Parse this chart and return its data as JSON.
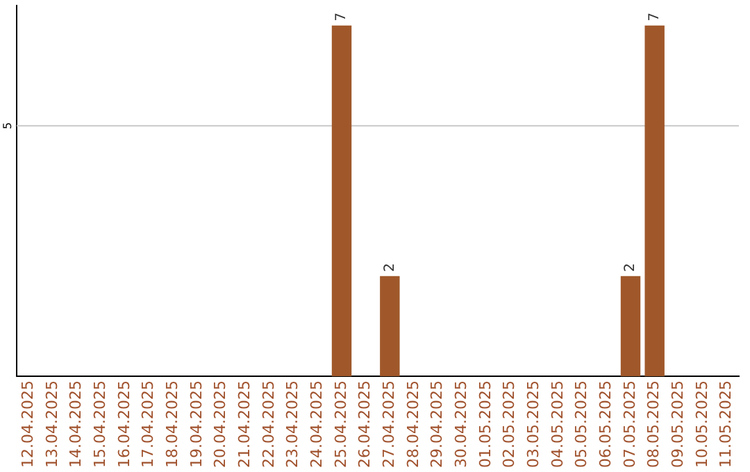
{
  "chart_data": {
    "type": "bar",
    "categories": [
      "12.04.2025",
      "13.04.2025",
      "14.04.2025",
      "15.04.2025",
      "16.04.2025",
      "17.04.2025",
      "18.04.2025",
      "19.04.2025",
      "20.04.2025",
      "21.04.2025",
      "22.04.2025",
      "23.04.2025",
      "24.04.2025",
      "25.04.2025",
      "26.04.2025",
      "27.04.2025",
      "28.04.2025",
      "29.04.2025",
      "30.04.2025",
      "01.05.2025",
      "02.05.2025",
      "03.05.2025",
      "04.05.2025",
      "05.05.2025",
      "06.05.2025",
      "07.05.2025",
      "08.05.2025",
      "09.05.2025",
      "10.05.2025",
      "11.05.2025"
    ],
    "values": [
      null,
      null,
      null,
      null,
      null,
      null,
      null,
      null,
      null,
      null,
      null,
      null,
      null,
      7,
      null,
      2,
      null,
      null,
      null,
      null,
      null,
      null,
      null,
      null,
      null,
      2,
      7,
      null,
      null,
      null
    ],
    "data_labels": true,
    "color": "#a0582a",
    "ylim": [
      0,
      7.4
    ],
    "ref_lines": [
      {
        "axis": "y",
        "value": 5,
        "label": "5",
        "color": "#c8c8c8"
      }
    ],
    "legend": false
  }
}
